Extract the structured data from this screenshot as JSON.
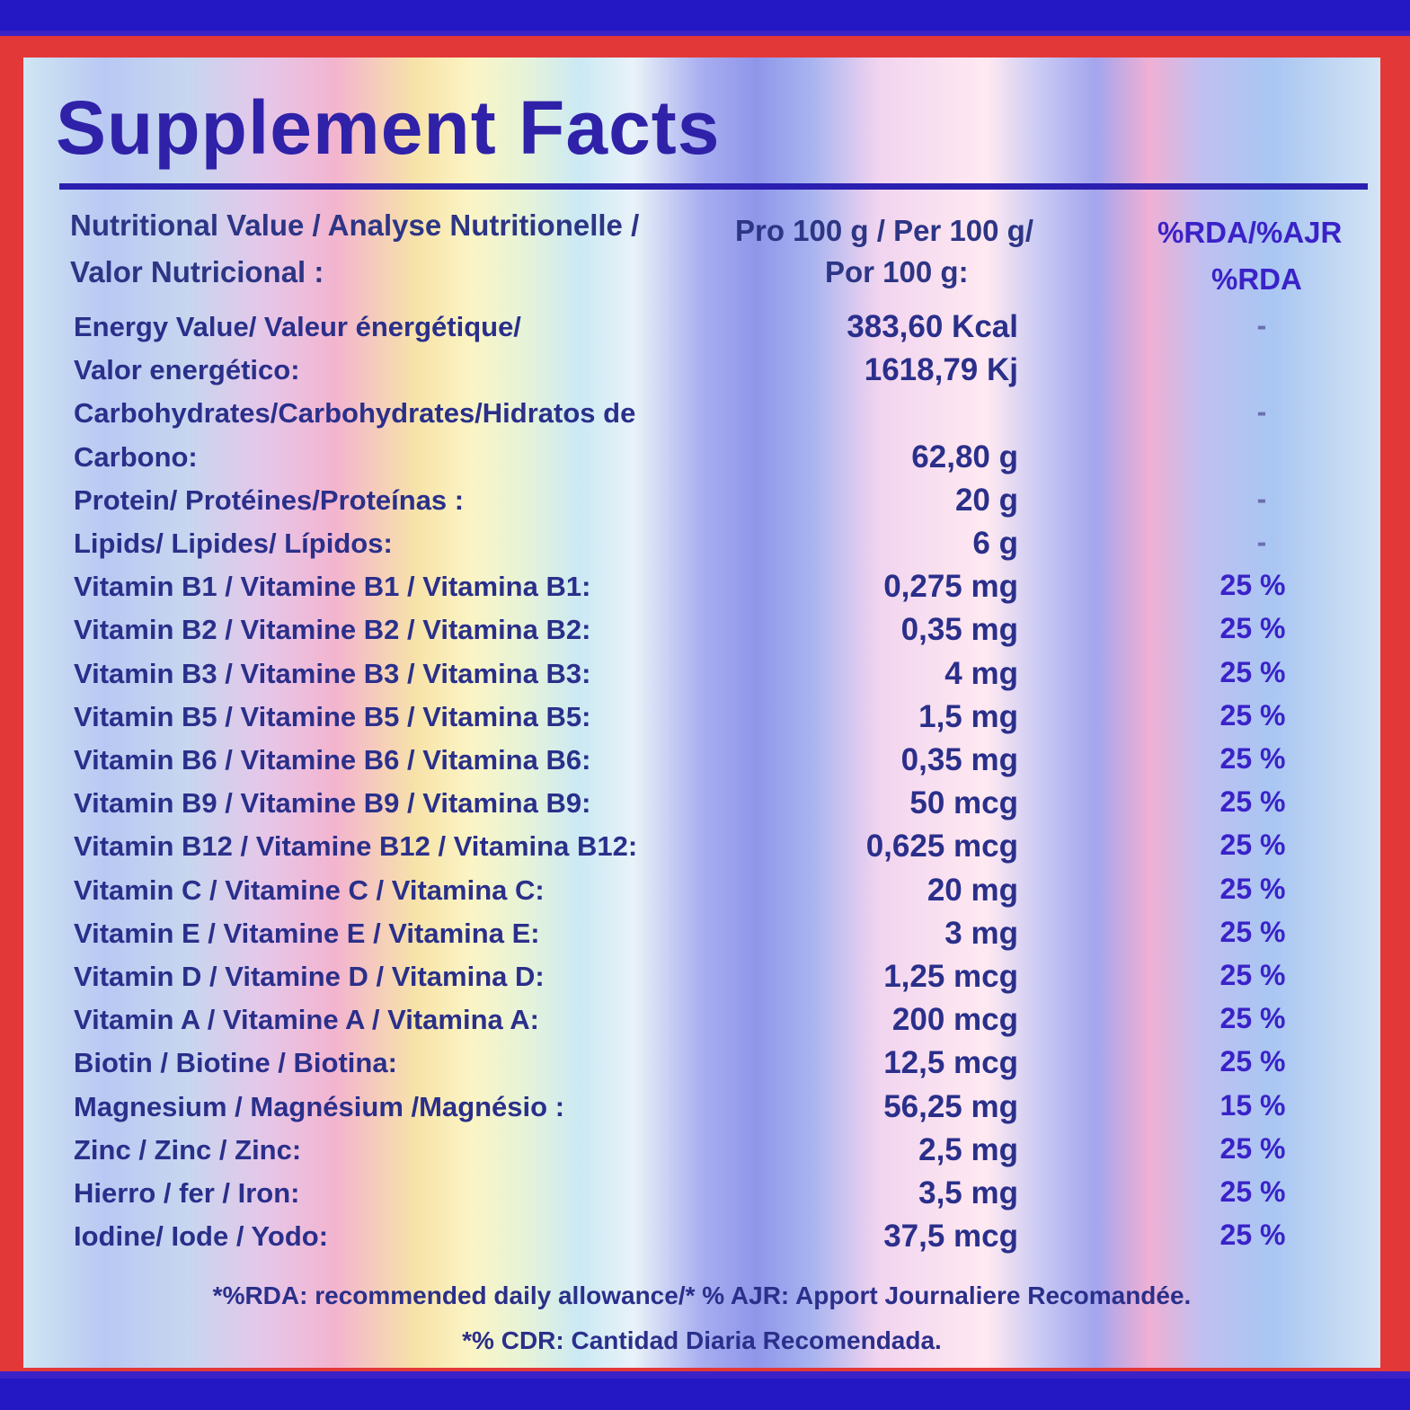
{
  "title": "Supplement Facts",
  "header": {
    "line1_left": "Nutritional Value / Analyse Nutritionelle /",
    "line1_mid": "Pro 100 g / Per 100 g/",
    "line1_right": "%RDA/%AJR",
    "line2_left": "Valor Nutricional :",
    "line2_mid": "Por 100 g:",
    "line2_right": "%RDA"
  },
  "rows": [
    {
      "label": "Energy Value/ Valeur énergétique/",
      "value": "383,60 Kcal",
      "rda": "-"
    },
    {
      "label": "Valor energético:",
      "value": "1618,79 Kj",
      "rda": ""
    },
    {
      "label": "Carbohydrates/Carbohydrates/Hidratos de",
      "value": "",
      "rda": "-"
    },
    {
      "label": "Carbono:",
      "value": "62,80 g",
      "rda": ""
    },
    {
      "label": "Protein/ Protéines/Proteínas :",
      "value": "20 g",
      "rda": "-"
    },
    {
      "label": "Lipids/ Lipides/ Lípidos:",
      "value": "6 g",
      "rda": "-"
    },
    {
      "label": "Vitamin B1 / Vitamine B1 / Vitamina B1:",
      "value": "0,275 mg",
      "rda": "25 %"
    },
    {
      "label": "Vitamin B2 / Vitamine B2 / Vitamina B2:",
      "value": "0,35 mg",
      "rda": "25 %"
    },
    {
      "label": "Vitamin B3 / Vitamine B3 / Vitamina B3:",
      "value": "4 mg",
      "rda": "25 %"
    },
    {
      "label": "Vitamin B5 / Vitamine B5 / Vitamina B5:",
      "value": "1,5 mg",
      "rda": "25 %"
    },
    {
      "label": "Vitamin B6 / Vitamine B6 / Vitamina B6:",
      "value": "0,35 mg",
      "rda": "25 %"
    },
    {
      "label": "Vitamin B9 / Vitamine B9 / Vitamina B9:",
      "value": "50 mcg",
      "rda": "25 %"
    },
    {
      "label": "Vitamin B12 / Vitamine B12 / Vitamina B12:",
      "value": "0,625 mcg",
      "rda": "25 %"
    },
    {
      "label": "Vitamin C / Vitamine C / Vitamina C:",
      "value": "20 mg",
      "rda": "25 %"
    },
    {
      "label": "Vitamin E / Vitamine E / Vitamina E:",
      "value": "3 mg",
      "rda": "25 %"
    },
    {
      "label": "Vitamin D / Vitamine D / Vitamina D:",
      "value": "1,25 mcg",
      "rda": "25 %"
    },
    {
      "label": "Vitamin A / Vitamine A / Vitamina A:",
      "value": "200 mcg",
      "rda": "25 %"
    },
    {
      "label": "Biotin / Biotine / Biotina:",
      "value": "12,5 mcg",
      "rda": "25 %"
    },
    {
      "label": "Magnesium / Magnésium /Magnésio :",
      "value": "56,25 mg",
      "rda": "15 %"
    },
    {
      "label": "Zinc / Zinc / Zinc:",
      "value": "2,5 mg",
      "rda": "25 %"
    },
    {
      "label": "Hierro / fer / Iron:",
      "value": "3,5 mg",
      "rda": "25 %"
    },
    {
      "label": "Iodine/ Iode / Yodo:",
      "value": "37,5 mcg",
      "rda": "25 %"
    }
  ],
  "footnotes": {
    "line1": "*%RDA: recommended daily allowance/* % AJR: Apport Journaliere Recomandée.",
    "line2": "*% CDR: Cantidad Diaria Recomendada."
  }
}
